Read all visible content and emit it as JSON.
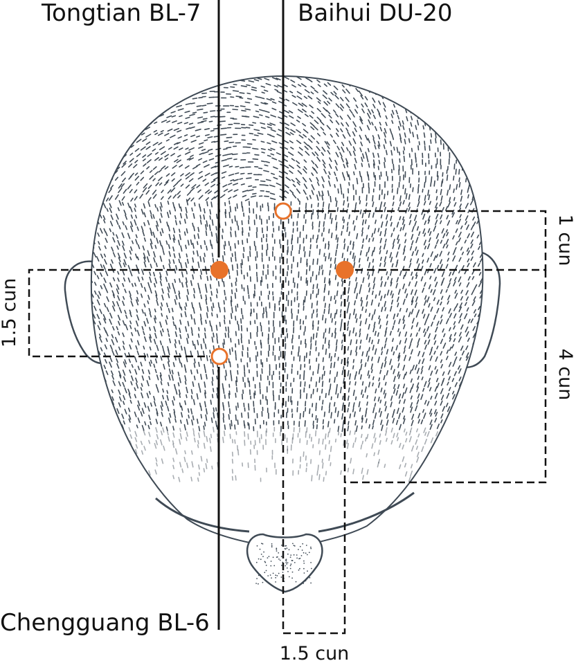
{
  "labels": {
    "tongtian": "Tongtian BL-7",
    "baihui": "Baihui DU-20",
    "chengguang": "Chengguang BL-6",
    "measure_left": "1.5 cun",
    "measure_right_top": "1 cun",
    "measure_right_long": "4 cun",
    "measure_bottom": "1.5 cun"
  },
  "colors": {
    "accent": "#e8722a",
    "ink": "#3f4a55",
    "line": "#111111"
  }
}
